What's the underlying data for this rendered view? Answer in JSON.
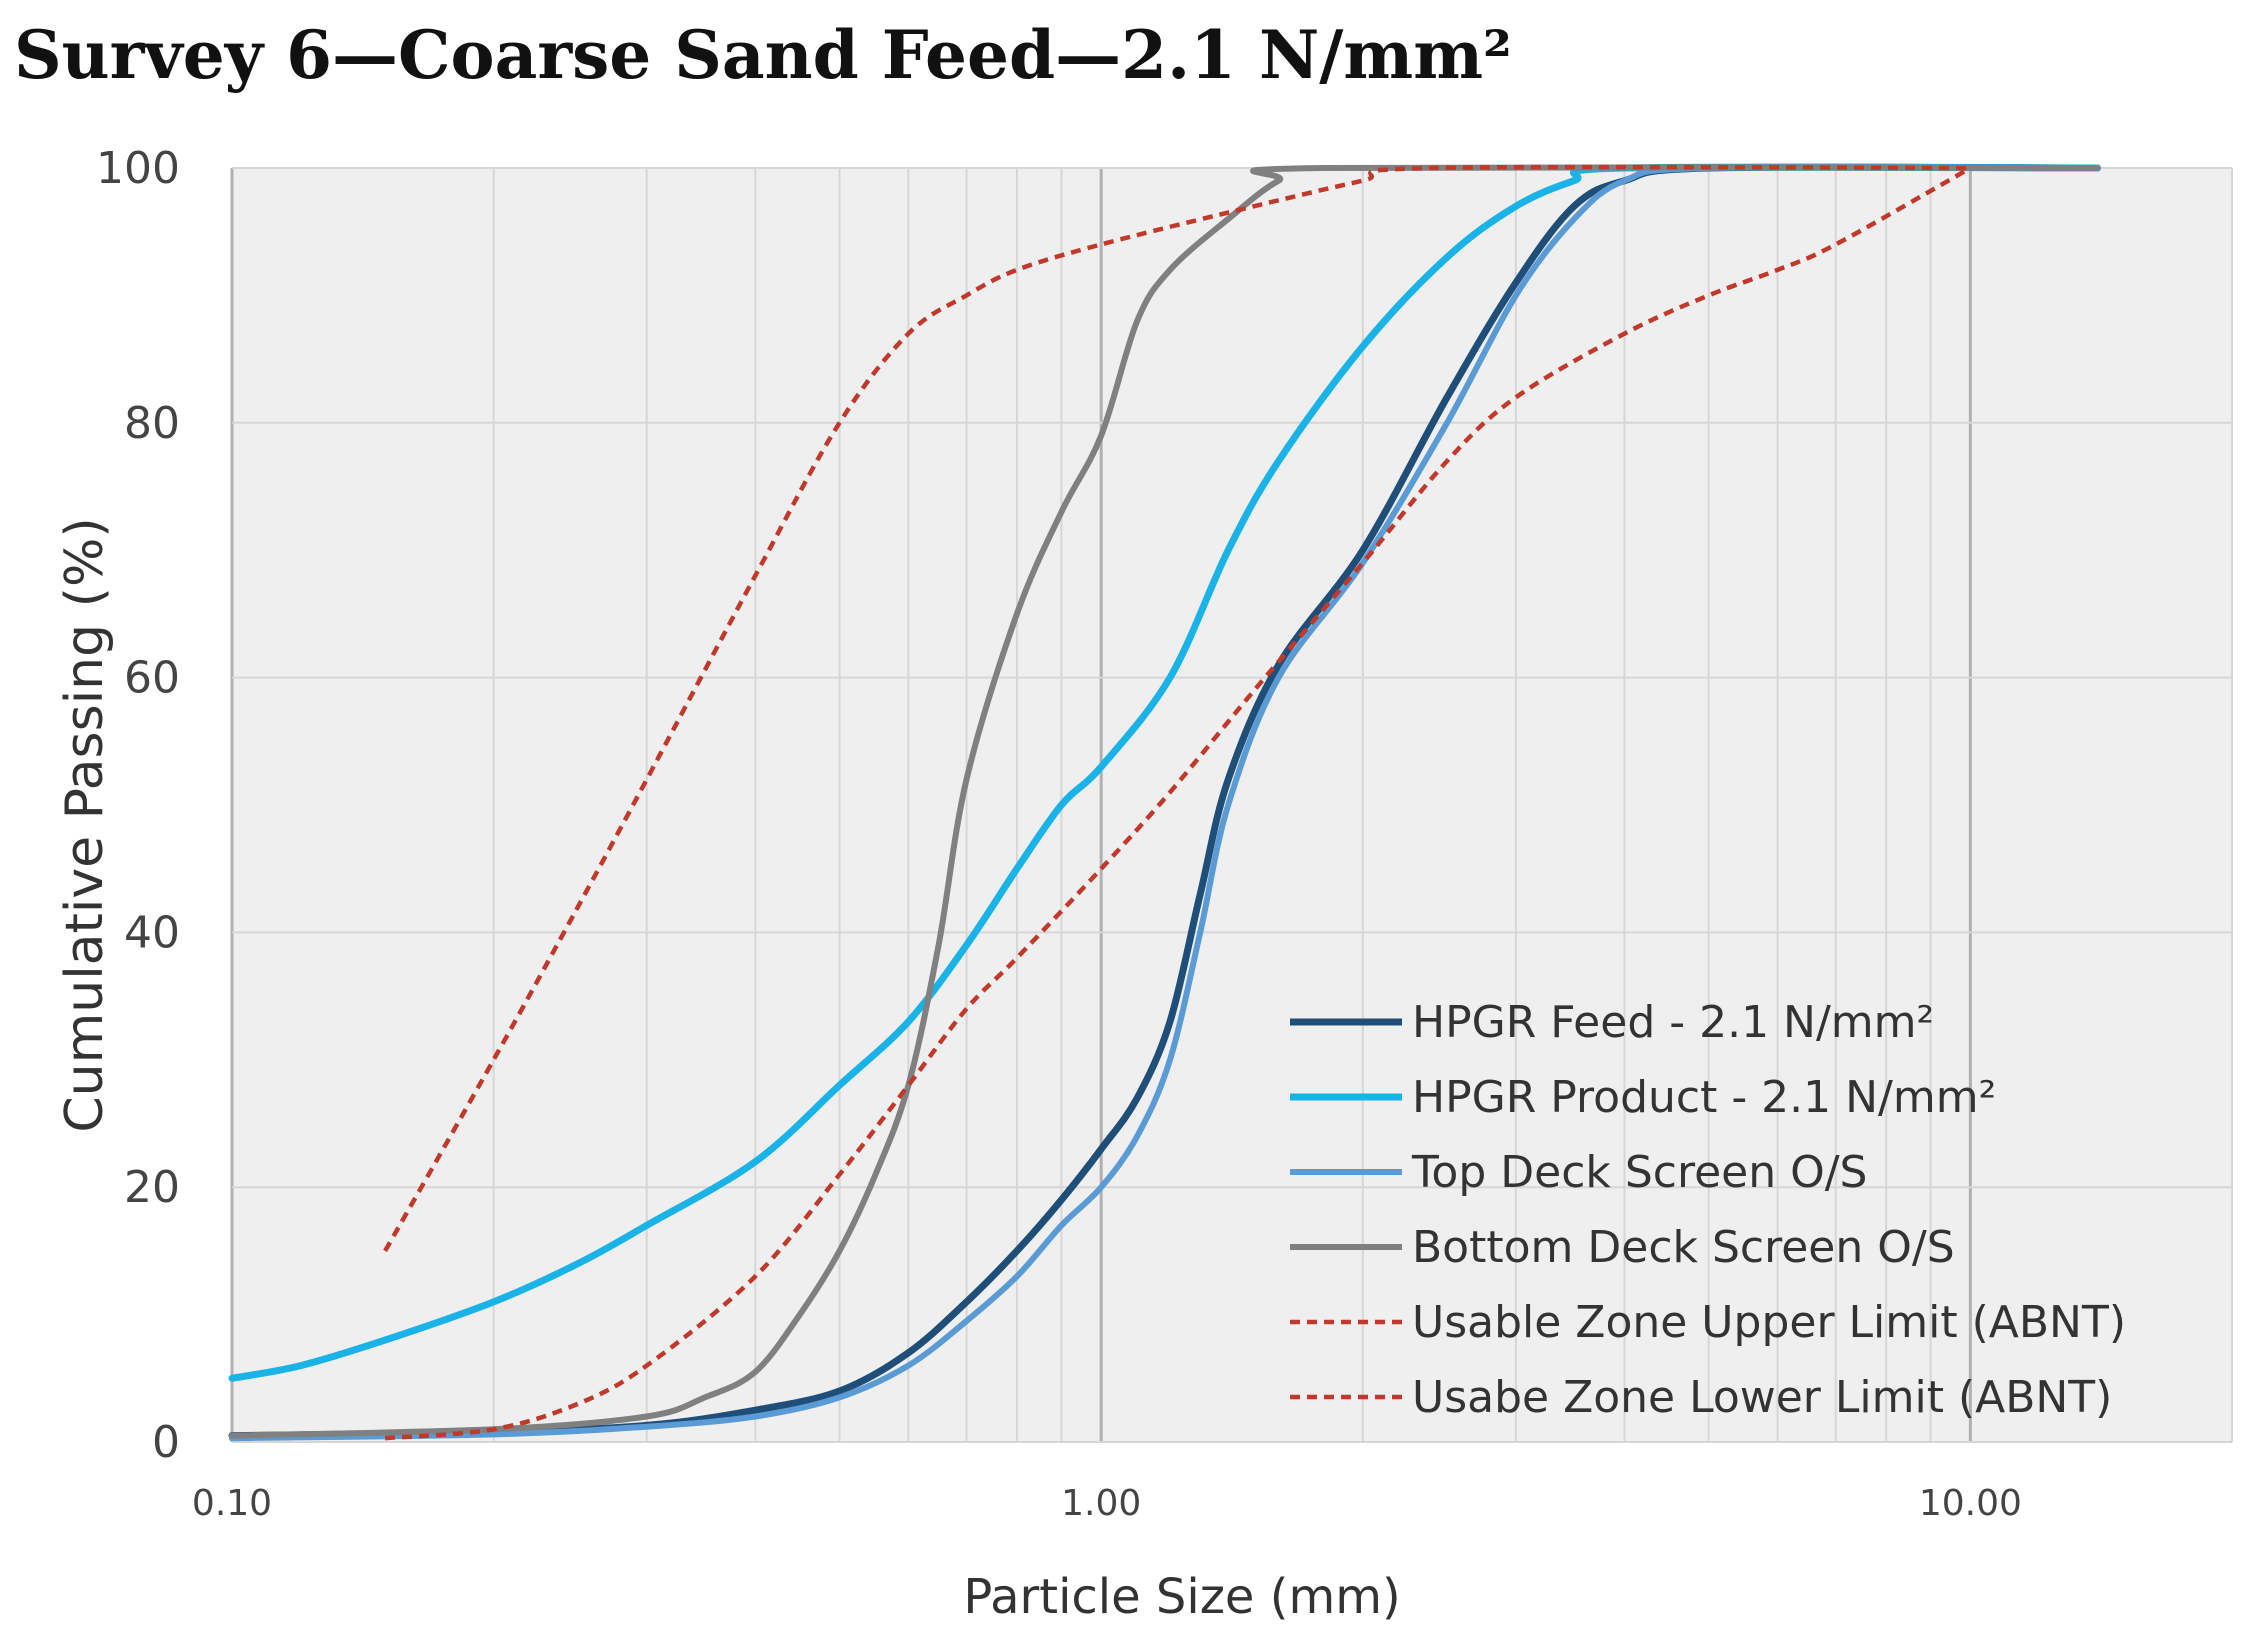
{
  "chart_data": {
    "type": "line",
    "title": "Survey 6—Coarse Sand Feed—2.1 N/mm²",
    "xlabel": "Particle Size (mm)",
    "ylabel": "Cumulative Passing (%)",
    "x_scale": "log",
    "xlim": [
      0.1,
      20
    ],
    "ylim": [
      0,
      100
    ],
    "x_ticks": [
      {
        "value": 0.1,
        "label": "0.10"
      },
      {
        "value": 1,
        "label": "1.00"
      },
      {
        "value": 10,
        "label": "10.00"
      }
    ],
    "y_ticks": [
      {
        "value": 0,
        "label": "0"
      },
      {
        "value": 20,
        "label": "20"
      },
      {
        "value": 40,
        "label": "40"
      },
      {
        "value": 60,
        "label": "60"
      },
      {
        "value": 80,
        "label": "80"
      },
      {
        "value": 100,
        "label": "100"
      }
    ],
    "grid": true,
    "legend_position": "bottom-right",
    "series": [
      {
        "name": "HPGR Feed - 2.1 N/mm²",
        "color": "#1f4e79",
        "style": "solid",
        "width": 7,
        "points": [
          [
            0.1,
            0.5
          ],
          [
            0.2,
            0.8
          ],
          [
            0.3,
            1.3
          ],
          [
            0.4,
            2.5
          ],
          [
            0.5,
            4
          ],
          [
            0.6,
            7
          ],
          [
            0.7,
            11
          ],
          [
            0.8,
            15
          ],
          [
            0.9,
            19
          ],
          [
            1.0,
            23
          ],
          [
            1.1,
            27
          ],
          [
            1.2,
            33
          ],
          [
            1.3,
            43
          ],
          [
            1.4,
            52
          ],
          [
            1.6,
            61
          ],
          [
            2.0,
            70
          ],
          [
            2.5,
            82
          ],
          [
            3.0,
            91
          ],
          [
            3.5,
            97
          ],
          [
            4.0,
            99
          ],
          [
            5.0,
            100
          ],
          [
            14.0,
            100
          ]
        ]
      },
      {
        "name": "HPGR Product - 2.1 N/mm²",
        "color": "#1ab3e8",
        "style": "solid",
        "width": 7,
        "points": [
          [
            0.1,
            5
          ],
          [
            0.12,
            6
          ],
          [
            0.15,
            8
          ],
          [
            0.2,
            11
          ],
          [
            0.25,
            14
          ],
          [
            0.3,
            17
          ],
          [
            0.4,
            22
          ],
          [
            0.5,
            28
          ],
          [
            0.6,
            33
          ],
          [
            0.7,
            39
          ],
          [
            0.8,
            45
          ],
          [
            0.9,
            50
          ],
          [
            1.0,
            53
          ],
          [
            1.2,
            60
          ],
          [
            1.4,
            70
          ],
          [
            1.6,
            77
          ],
          [
            2.0,
            86
          ],
          [
            2.5,
            93
          ],
          [
            3.0,
            97
          ],
          [
            3.5,
            99
          ],
          [
            4.0,
            100
          ],
          [
            14.0,
            100
          ]
        ]
      },
      {
        "name": "Top Deck Screen O/S",
        "color": "#5b9bd5",
        "style": "solid",
        "width": 6,
        "points": [
          [
            0.1,
            0.3
          ],
          [
            0.2,
            0.6
          ],
          [
            0.3,
            1.2
          ],
          [
            0.4,
            2
          ],
          [
            0.5,
            3.5
          ],
          [
            0.6,
            6
          ],
          [
            0.7,
            9.5
          ],
          [
            0.8,
            13
          ],
          [
            0.9,
            17
          ],
          [
            1.0,
            20
          ],
          [
            1.1,
            24
          ],
          [
            1.2,
            30
          ],
          [
            1.3,
            40
          ],
          [
            1.4,
            50
          ],
          [
            1.6,
            60
          ],
          [
            2.0,
            69
          ],
          [
            2.5,
            80
          ],
          [
            3.0,
            90
          ],
          [
            3.5,
            96
          ],
          [
            4.0,
            99
          ],
          [
            5.0,
            100
          ],
          [
            14.0,
            100
          ]
        ]
      },
      {
        "name": "Bottom Deck Screen O/S",
        "color": "#808080",
        "style": "solid",
        "width": 6,
        "points": [
          [
            0.1,
            0.5
          ],
          [
            0.2,
            1
          ],
          [
            0.3,
            2
          ],
          [
            0.35,
            3.5
          ],
          [
            0.4,
            5.5
          ],
          [
            0.45,
            10
          ],
          [
            0.5,
            15
          ],
          [
            0.55,
            21
          ],
          [
            0.6,
            28
          ],
          [
            0.65,
            39
          ],
          [
            0.7,
            52
          ],
          [
            0.8,
            65
          ],
          [
            0.9,
            73
          ],
          [
            1.0,
            79
          ],
          [
            1.1,
            88
          ],
          [
            1.2,
            92
          ],
          [
            1.4,
            96
          ],
          [
            1.6,
            99
          ],
          [
            1.8,
            100
          ],
          [
            14.0,
            100
          ]
        ]
      },
      {
        "name": "Usable Zone Upper Limit (ABNT)",
        "color": "#c0392b",
        "style": "dashed",
        "width": 4.5,
        "points": [
          [
            0.15,
            15
          ],
          [
            0.2,
            30
          ],
          [
            0.25,
            42
          ],
          [
            0.3,
            52
          ],
          [
            0.4,
            68
          ],
          [
            0.5,
            80
          ],
          [
            0.6,
            87
          ],
          [
            0.7,
            90
          ],
          [
            0.8,
            92
          ],
          [
            1.0,
            94
          ],
          [
            1.5,
            97
          ],
          [
            2.0,
            99
          ],
          [
            2.4,
            100
          ],
          [
            10.0,
            100
          ]
        ]
      },
      {
        "name": "Usabe Zone Lower Limit (ABNT)",
        "color": "#c0392b",
        "style": "dashed",
        "width": 4.5,
        "points": [
          [
            0.15,
            0.3
          ],
          [
            0.2,
            1
          ],
          [
            0.25,
            3
          ],
          [
            0.3,
            6
          ],
          [
            0.4,
            13
          ],
          [
            0.5,
            21
          ],
          [
            0.6,
            28
          ],
          [
            0.7,
            34
          ],
          [
            0.8,
            38
          ],
          [
            1.0,
            45
          ],
          [
            1.2,
            51
          ],
          [
            1.5,
            59
          ],
          [
            2.0,
            69
          ],
          [
            2.5,
            77
          ],
          [
            3.0,
            82
          ],
          [
            4.0,
            87
          ],
          [
            5.0,
            90
          ],
          [
            6.0,
            92
          ],
          [
            7.0,
            94
          ],
          [
            10.0,
            100
          ]
        ]
      }
    ]
  }
}
